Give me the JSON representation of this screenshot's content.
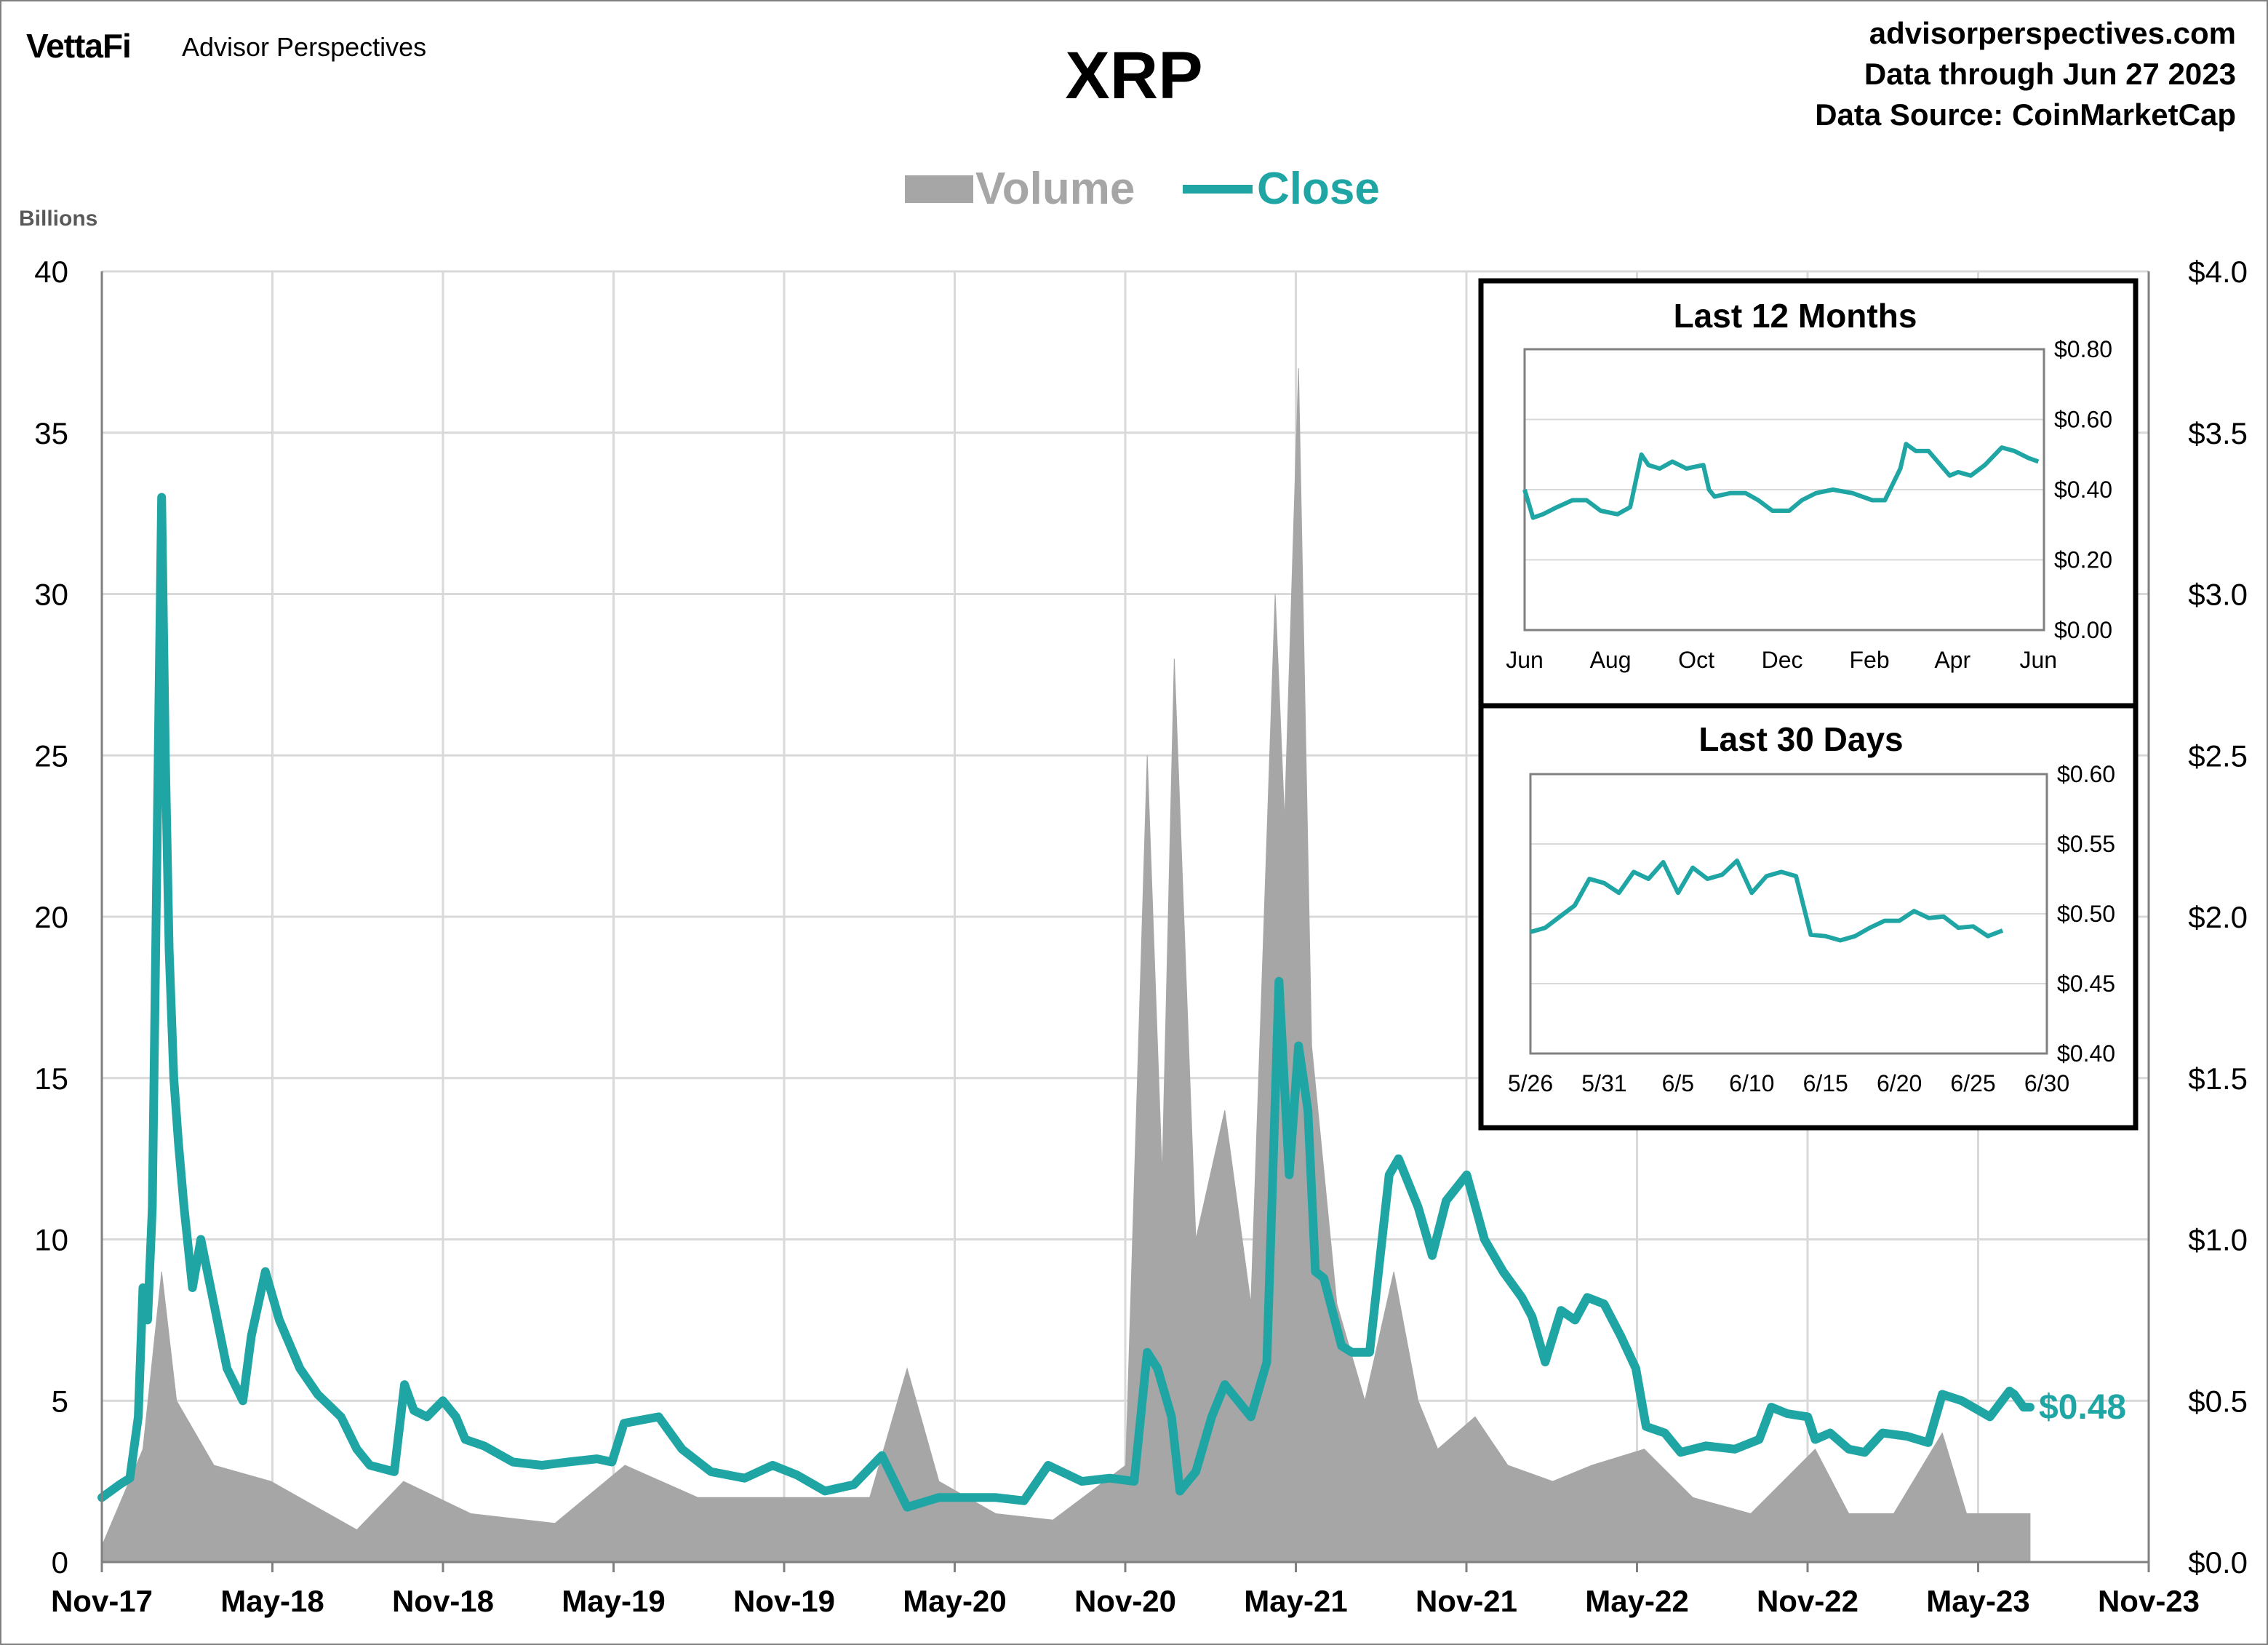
{
  "header": {
    "brand_logo": "VettaFi",
    "brand_sub": "Advisor Perspectives",
    "title": "XRP",
    "source_lines": [
      "advisorperspectives.com",
      "Data through Jun 27 2023",
      "Data Source: CoinMarketCap"
    ]
  },
  "colors": {
    "close": "#20A5A5",
    "volume": "#A6A6A6",
    "grid": "#D9D9D9"
  },
  "chart_data": [
    {
      "type": "area",
      "title": "XRP",
      "legend": {
        "placement": "top-center",
        "entries": [
          "Volume",
          "Close"
        ]
      },
      "ylabel_left": "Billions",
      "x_tick_labels": [
        "Nov-17",
        "May-18",
        "Nov-18",
        "May-19",
        "Nov-19",
        "May-20",
        "Nov-20",
        "May-21",
        "Nov-21",
        "May-22",
        "Nov-22",
        "May-23",
        "Nov-23"
      ],
      "y_left": {
        "lim": [
          0,
          40
        ],
        "ticks": [
          "0",
          "5",
          "10",
          "15",
          "20",
          "25",
          "30",
          "35",
          "40"
        ]
      },
      "y_right": {
        "lim": [
          0,
          4
        ],
        "ticks": [
          "$0.0",
          "$0.5",
          "$1.0",
          "$1.5",
          "$2.0",
          "$2.5",
          "$3.0",
          "$3.5",
          "$4.0"
        ]
      },
      "grid": true,
      "last_label": "$0.48",
      "series": [
        {
          "name": "Volume",
          "axis": "left",
          "x": [
            "2017-11-01",
            "2017-12-15",
            "2018-01-04",
            "2018-01-20",
            "2018-03-01",
            "2018-05-01",
            "2018-08-01",
            "2018-09-20",
            "2018-12-01",
            "2019-03-01",
            "2019-05-15",
            "2019-08-01",
            "2019-11-01",
            "2020-02-01",
            "2020-03-12",
            "2020-04-15",
            "2020-06-15",
            "2020-08-15",
            "2020-11-01",
            "2020-11-24",
            "2020-12-10",
            "2020-12-23",
            "2021-01-15",
            "2021-02-15",
            "2021-03-15",
            "2021-04-10",
            "2021-04-20",
            "2021-05-05",
            "2021-05-19",
            "2021-06-15",
            "2021-07-15",
            "2021-08-15",
            "2021-09-10",
            "2021-10-01",
            "2021-11-10",
            "2021-12-15",
            "2022-02-01",
            "2022-03-15",
            "2022-05-10",
            "2022-07-01",
            "2022-09-01",
            "2022-11-09",
            "2022-12-15",
            "2023-02-01",
            "2023-03-25",
            "2023-04-20",
            "2023-06-27"
          ],
          "values": [
            0.5,
            3.5,
            9.0,
            5.0,
            3.0,
            2.5,
            1.0,
            2.5,
            1.5,
            1.2,
            3.0,
            2.0,
            2.0,
            2.0,
            6.0,
            2.5,
            1.5,
            1.3,
            3.0,
            25.0,
            12.0,
            28.0,
            10.0,
            14.0,
            8.0,
            30.0,
            23.0,
            37.0,
            16.0,
            8.0,
            5.0,
            9.0,
            5.0,
            3.5,
            4.5,
            3.0,
            2.5,
            3.0,
            3.5,
            2.0,
            1.5,
            3.5,
            1.5,
            1.5,
            4.0,
            1.5,
            1.5
          ]
        },
        {
          "name": "Close",
          "axis": "right",
          "x": [
            "2017-11-01",
            "2017-11-20",
            "2017-12-01",
            "2017-12-10",
            "2017-12-15",
            "2017-12-20",
            "2017-12-25",
            "2017-12-30",
            "2018-01-04",
            "2018-01-08",
            "2018-01-12",
            "2018-01-17",
            "2018-01-22",
            "2018-01-28",
            "2018-02-06",
            "2018-02-15",
            "2018-03-01",
            "2018-03-15",
            "2018-04-01",
            "2018-04-10",
            "2018-04-25",
            "2018-05-10",
            "2018-06-01",
            "2018-06-20",
            "2018-07-15",
            "2018-08-01",
            "2018-08-15",
            "2018-09-10",
            "2018-09-21",
            "2018-10-01",
            "2018-10-15",
            "2018-11-01",
            "2018-11-15",
            "2018-11-25",
            "2018-12-15",
            "2019-01-15",
            "2019-02-15",
            "2019-03-15",
            "2019-04-15",
            "2019-05-01",
            "2019-05-14",
            "2019-06-01",
            "2019-06-20",
            "2019-07-15",
            "2019-08-15",
            "2019-09-20",
            "2019-10-20",
            "2019-11-15",
            "2019-12-15",
            "2020-01-15",
            "2020-02-14",
            "2020-03-12",
            "2020-04-15",
            "2020-05-15",
            "2020-06-15",
            "2020-07-15",
            "2020-08-10",
            "2020-09-15",
            "2020-10-15",
            "2020-11-10",
            "2020-11-24",
            "2020-12-05",
            "2020-12-20",
            "2020-12-29",
            "2021-01-15",
            "2021-02-01",
            "2021-02-15",
            "2021-03-15",
            "2021-04-01",
            "2021-04-14",
            "2021-04-25",
            "2021-05-05",
            "2021-05-15",
            "2021-05-23",
            "2021-06-01",
            "2021-06-20",
            "2021-07-01",
            "2021-07-20",
            "2021-08-10",
            "2021-08-20",
            "2021-09-10",
            "2021-09-25",
            "2021-10-10",
            "2021-11-01",
            "2021-11-20",
            "2021-12-10",
            "2021-12-30",
            "2022-01-10",
            "2022-01-24",
            "2022-02-10",
            "2022-02-25",
            "2022-03-10",
            "2022-03-28",
            "2022-04-15",
            "2022-05-01",
            "2022-05-12",
            "2022-06-01",
            "2022-06-18",
            "2022-07-15",
            "2022-08-15",
            "2022-09-10",
            "2022-09-23",
            "2022-10-10",
            "2022-11-01",
            "2022-11-09",
            "2022-11-25",
            "2022-12-15",
            "2023-01-01",
            "2023-01-20",
            "2023-02-15",
            "2023-03-10",
            "2023-03-25",
            "2023-04-15",
            "2023-05-15",
            "2023-06-05",
            "2023-06-10",
            "2023-06-20",
            "2023-06-27"
          ],
          "values": [
            0.2,
            0.24,
            0.26,
            0.45,
            0.85,
            0.75,
            1.1,
            2.2,
            3.3,
            2.5,
            1.9,
            1.5,
            1.3,
            1.1,
            0.85,
            1.0,
            0.8,
            0.6,
            0.5,
            0.7,
            0.9,
            0.75,
            0.6,
            0.52,
            0.45,
            0.35,
            0.3,
            0.28,
            0.55,
            0.47,
            0.45,
            0.5,
            0.45,
            0.38,
            0.36,
            0.31,
            0.3,
            0.31,
            0.32,
            0.31,
            0.43,
            0.44,
            0.45,
            0.35,
            0.28,
            0.26,
            0.3,
            0.27,
            0.22,
            0.24,
            0.33,
            0.17,
            0.2,
            0.2,
            0.2,
            0.19,
            0.3,
            0.25,
            0.26,
            0.25,
            0.65,
            0.6,
            0.45,
            0.22,
            0.28,
            0.45,
            0.55,
            0.45,
            0.62,
            1.8,
            1.2,
            1.6,
            1.4,
            0.9,
            0.88,
            0.67,
            0.65,
            0.65,
            1.2,
            1.25,
            1.1,
            0.95,
            1.12,
            1.2,
            1.0,
            0.9,
            0.82,
            0.76,
            0.62,
            0.78,
            0.75,
            0.82,
            0.8,
            0.7,
            0.6,
            0.42,
            0.4,
            0.34,
            0.36,
            0.35,
            0.38,
            0.48,
            0.46,
            0.45,
            0.38,
            0.4,
            0.35,
            0.34,
            0.4,
            0.39,
            0.37,
            0.52,
            0.5,
            0.45,
            0.53,
            0.52,
            0.48,
            0.48
          ]
        }
      ]
    },
    {
      "type": "line",
      "title": "Last 12 Months",
      "x_tick_labels": [
        "Jun",
        "Aug",
        "Oct",
        "Dec",
        "Feb",
        "Apr",
        "Jun"
      ],
      "y_right": {
        "lim": [
          0,
          0.8
        ],
        "ticks": [
          "$0.00",
          "$0.20",
          "$0.40",
          "$0.60",
          "$0.80"
        ]
      },
      "grid": true,
      "series": [
        {
          "x": [
            "2022-06-27",
            "2022-07-03",
            "2022-07-10",
            "2022-07-20",
            "2022-07-31",
            "2022-08-10",
            "2022-08-20",
            "2022-09-01",
            "2022-09-10",
            "2022-09-18",
            "2022-09-23",
            "2022-10-01",
            "2022-10-10",
            "2022-10-20",
            "2022-11-01",
            "2022-11-05",
            "2022-11-09",
            "2022-11-20",
            "2022-12-01",
            "2022-12-10",
            "2022-12-20",
            "2023-01-01",
            "2023-01-10",
            "2023-01-20",
            "2023-02-01",
            "2023-02-15",
            "2023-03-01",
            "2023-03-10",
            "2023-03-21",
            "2023-03-25",
            "2023-04-01",
            "2023-04-10",
            "2023-04-25",
            "2023-05-01",
            "2023-05-10",
            "2023-05-20",
            "2023-06-01",
            "2023-06-10",
            "2023-06-20",
            "2023-06-27"
          ],
          "values": [
            0.4,
            0.32,
            0.33,
            0.35,
            0.37,
            0.37,
            0.34,
            0.33,
            0.35,
            0.5,
            0.47,
            0.46,
            0.48,
            0.46,
            0.47,
            0.4,
            0.38,
            0.39,
            0.39,
            0.37,
            0.34,
            0.34,
            0.37,
            0.39,
            0.4,
            0.39,
            0.37,
            0.37,
            0.46,
            0.53,
            0.51,
            0.51,
            0.44,
            0.45,
            0.44,
            0.47,
            0.52,
            0.51,
            0.49,
            0.48
          ]
        }
      ]
    },
    {
      "type": "line",
      "title": "Last 30 Days",
      "x_tick_labels": [
        "5/26",
        "5/31",
        "6/5",
        "6/10",
        "6/15",
        "6/20",
        "6/25",
        "6/30"
      ],
      "y_right": {
        "lim": [
          0.4,
          0.6
        ],
        "ticks": [
          "$0.40",
          "$0.45",
          "$0.50",
          "$0.55",
          "$0.60"
        ]
      },
      "grid": true,
      "series": [
        {
          "x": [
            "2023-05-26",
            "2023-05-27",
            "2023-05-28",
            "2023-05-29",
            "2023-05-30",
            "2023-05-31",
            "2023-06-01",
            "2023-06-02",
            "2023-06-03",
            "2023-06-04",
            "2023-06-05",
            "2023-06-06",
            "2023-06-07",
            "2023-06-08",
            "2023-06-09",
            "2023-06-10",
            "2023-06-11",
            "2023-06-12",
            "2023-06-13",
            "2023-06-14",
            "2023-06-15",
            "2023-06-16",
            "2023-06-17",
            "2023-06-18",
            "2023-06-19",
            "2023-06-20",
            "2023-06-21",
            "2023-06-22",
            "2023-06-23",
            "2023-06-24",
            "2023-06-25",
            "2023-06-26",
            "2023-06-27"
          ],
          "values": [
            0.487,
            0.49,
            0.498,
            0.506,
            0.525,
            0.522,
            0.515,
            0.53,
            0.525,
            0.537,
            0.515,
            0.533,
            0.525,
            0.528,
            0.538,
            0.515,
            0.527,
            0.53,
            0.527,
            0.485,
            0.484,
            0.481,
            0.484,
            0.49,
            0.495,
            0.495,
            0.502,
            0.497,
            0.498,
            0.49,
            0.491,
            0.484,
            0.488
          ]
        }
      ]
    }
  ]
}
